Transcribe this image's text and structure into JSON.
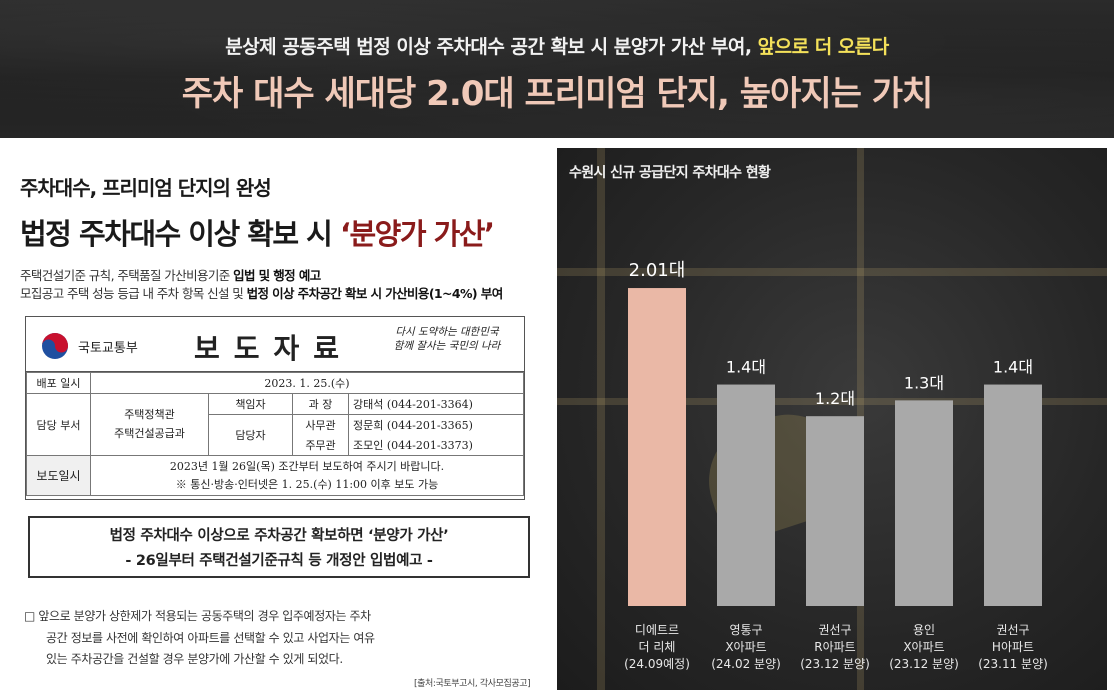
{
  "banner": {
    "subtitle_main": "분상제 공동주택 법정 이상 주차대수 공간 확보 시 분양가 가산 부여,",
    "subtitle_highlight": "앞으로 더 오른다",
    "title": "주차 대수 세대당 2.0대 프리미엄 단지, 높아지는 가치"
  },
  "left": {
    "heading_small": "주차대수, 프리미엄 단지의 완성",
    "heading_large_prefix": "법정 주차대수 이상 확보 시 ",
    "heading_large_accent": "‘분양가 가산’",
    "desc_line1_plain": "주택건설기준 규칙, 주택품질 가산비용기준 ",
    "desc_line1_bold": "입법 및 행정 예고",
    "desc_line2_plain": "모집공고 주택 성능 등급 내 주차 항목 신설 및 ",
    "desc_line2_bold": "법정 이상 주차공간 확보 시 가산비용(1~4%) 부여"
  },
  "press": {
    "ministry": "국토교통부",
    "title": "보도자료",
    "slogan_line1": "다시 도약하는 대한민국",
    "slogan_line2": "함께 잘사는 국민의 나라",
    "dist_label": "배포 일시",
    "dist_value": "2023. 1. 25.(수)",
    "dept_label": "담당 부서",
    "dept1": "주택정책관",
    "dept2": "주택건설공급과",
    "role1": "책임자",
    "role2": "담당자",
    "pos1": "과   장",
    "pos2": "사무관",
    "pos3": "주무관",
    "person1": "강태석 (044-201-3364)",
    "person2": "정문희 (044-201-3365)",
    "person3": "조모인 (044-201-3373)",
    "report_label": "보도일시",
    "report_line1": "2023년 1월 26일(목) 조간부터 보도하여 주시기 바랍니다.",
    "report_line2": "※ 통신·방송·인터넷은 1. 25.(수) 11:00 이후 보도 가능"
  },
  "notice": {
    "line1": "법정 주차대수 이상으로 주차공간 확보하면 ‘분양가 가산’",
    "line2": "- 26일부터 주택건설기준규칙 등 개정안 입법예고 -"
  },
  "body_text": {
    "line1": "□ 앞으로 분양가 상한제가 적용되는 공동주택의 경우 입주예정자는 주차",
    "line2": "공간 정보를 사전에 확인하여 아파트를 선택할 수 있고 사업자는 여유",
    "line3": "있는 주차공간을 건설할 경우 분양가에 가산할 수 있게 되었다."
  },
  "source": "[출처:국토부고시, 각사모집공고]",
  "chart_data": {
    "type": "bar",
    "title": "수원시 신규 공급단지 주차대수 현황",
    "xlabel": "",
    "ylabel": "",
    "unit": "대",
    "ylim": [
      0,
      2.2
    ],
    "grid": false,
    "categories": [
      [
        "디에트르",
        "더 리체",
        "(24.09예정)"
      ],
      [
        "영통구",
        "X아파트",
        "(24.02 분양)"
      ],
      [
        "권선구",
        "R아파트",
        "(23.12 분양)"
      ],
      [
        "용인",
        "X아파트",
        "(23.12 분양)"
      ],
      [
        "권선구",
        "H아파트",
        "(23.11 분양)"
      ]
    ],
    "values": [
      2.01,
      1.4,
      1.2,
      1.3,
      1.4
    ],
    "value_labels": [
      "2.01대",
      "1.4대",
      "1.2대",
      "1.3대",
      "1.4대"
    ],
    "colors": [
      "#eab8a6",
      "#a9a9a9",
      "#a9a9a9",
      "#a9a9a9",
      "#a9a9a9"
    ]
  },
  "theme": {
    "highlight_yellow": "#f4e15a",
    "accent_red": "#8a1b1b",
    "banner_title_color": "#f0c9b8"
  }
}
